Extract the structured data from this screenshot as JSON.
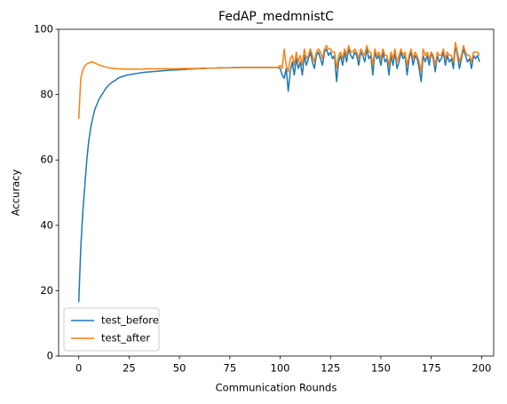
{
  "chart_data": {
    "type": "line",
    "title": "FedAP_medmnistC",
    "x_label": "Communication Rounds",
    "y_label": "Accuracy",
    "x": [
      0,
      1,
      2,
      3,
      4,
      5,
      6,
      7,
      8,
      9,
      10,
      11,
      12,
      13,
      14,
      15,
      16,
      17,
      18,
      19,
      20,
      21,
      22,
      23,
      24,
      25,
      26,
      27,
      28,
      29,
      30,
      31,
      32,
      33,
      34,
      35,
      36,
      37,
      38,
      39,
      40,
      41,
      42,
      43,
      44,
      45,
      46,
      47,
      48,
      49,
      50,
      51,
      52,
      53,
      54,
      55,
      56,
      57,
      58,
      59,
      60,
      61,
      62,
      63,
      64,
      65,
      66,
      67,
      68,
      69,
      70,
      71,
      72,
      73,
      74,
      75,
      76,
      77,
      78,
      79,
      80,
      81,
      82,
      83,
      84,
      85,
      86,
      87,
      88,
      89,
      90,
      91,
      92,
      93,
      94,
      95,
      96,
      97,
      98,
      99,
      100,
      101,
      102,
      103,
      104,
      105,
      106,
      107,
      108,
      109,
      110,
      111,
      112,
      113,
      114,
      115,
      116,
      117,
      118,
      119,
      120,
      121,
      122,
      123,
      124,
      125,
      126,
      127,
      128,
      129,
      130,
      131,
      132,
      133,
      134,
      135,
      136,
      137,
      138,
      139,
      140,
      141,
      142,
      143,
      144,
      145,
      146,
      147,
      148,
      149,
      150,
      151,
      152,
      153,
      154,
      155,
      156,
      157,
      158,
      159,
      160,
      161,
      162,
      163,
      164,
      165,
      166,
      167,
      168,
      169,
      170,
      171,
      172,
      173,
      174,
      175,
      176,
      177,
      178,
      179,
      180,
      181,
      182,
      183,
      184,
      185,
      186,
      187,
      188,
      189,
      190,
      191,
      192,
      193,
      194,
      195,
      196,
      197,
      198,
      199
    ],
    "series": [
      {
        "name": "test_before",
        "color": "#1f77b4",
        "values": [
          16.5,
          33,
          44,
          52,
          60,
          66,
          70,
          73,
          75.5,
          77,
          78.5,
          79.5,
          80.5,
          81.5,
          82.3,
          83,
          83.5,
          84,
          84.3,
          84.8,
          85.2,
          85.4,
          85.6,
          85.8,
          86,
          86.1,
          86.2,
          86.3,
          86.4,
          86.5,
          86.6,
          86.7,
          86.8,
          86.9,
          86.9,
          87,
          87,
          87.1,
          87.1,
          87.2,
          87.2,
          87.3,
          87.3,
          87.4,
          87.4,
          87.5,
          87.5,
          87.5,
          87.6,
          87.6,
          87.6,
          87.7,
          87.7,
          87.7,
          87.8,
          87.8,
          87.8,
          87.9,
          87.9,
          87.9,
          88,
          88,
          88,
          88,
          88.1,
          88.1,
          88.1,
          88.1,
          88.1,
          88.2,
          88.2,
          88.2,
          88.2,
          88.2,
          88.2,
          88.2,
          88.3,
          88.3,
          88.3,
          88.3,
          88.3,
          88.3,
          88.3,
          88.3,
          88.3,
          88.3,
          88.3,
          88.3,
          88.3,
          88.3,
          88.3,
          88.3,
          88.3,
          88.3,
          88.3,
          88.3,
          88.3,
          88.3,
          88.3,
          88.3,
          88,
          86,
          85,
          88,
          81,
          87,
          90,
          86,
          91,
          88,
          90,
          86,
          92,
          89,
          91,
          93,
          90,
          88,
          92,
          93,
          91,
          89,
          93,
          94,
          92,
          93,
          91,
          92,
          84,
          90,
          92,
          89,
          93,
          90,
          94,
          92,
          91,
          93,
          92,
          89,
          93,
          92,
          90,
          94,
          91,
          92,
          86,
          93,
          91,
          92,
          89,
          93,
          90,
          91,
          86,
          92,
          89,
          93,
          88,
          90,
          93,
          91,
          92,
          86,
          91,
          93,
          89,
          92,
          91,
          88,
          84,
          92,
          90,
          92,
          89,
          93,
          91,
          87,
          92,
          90,
          91,
          93,
          89,
          92,
          90,
          91,
          88,
          95,
          92,
          88,
          91,
          94,
          92,
          90,
          91,
          88,
          92,
          91,
          92,
          90
        ]
      },
      {
        "name": "test_after",
        "color": "#ff7f0e",
        "values": [
          72.5,
          85,
          87.5,
          88.8,
          89.4,
          89.7,
          89.9,
          90,
          89.7,
          89.4,
          89.1,
          88.9,
          88.7,
          88.5,
          88.4,
          88.2,
          88.1,
          88,
          88,
          87.9,
          87.9,
          87.9,
          87.8,
          87.8,
          87.8,
          87.8,
          87.8,
          87.8,
          87.8,
          87.8,
          87.8,
          87.8,
          87.8,
          87.9,
          87.9,
          87.9,
          87.9,
          87.9,
          87.9,
          87.9,
          87.9,
          87.9,
          87.9,
          87.9,
          87.9,
          87.9,
          87.9,
          87.9,
          87.9,
          87.9,
          87.9,
          88,
          88,
          88,
          88,
          88,
          88,
          88,
          88,
          88,
          88,
          88.1,
          88.1,
          88.1,
          88.1,
          88.1,
          88.1,
          88.1,
          88.1,
          88.1,
          88.1,
          88.2,
          88.2,
          88.2,
          88.2,
          88.2,
          88.2,
          88.2,
          88.2,
          88.2,
          88.2,
          88.3,
          88.3,
          88.3,
          88.3,
          88.3,
          88.3,
          88.3,
          88.3,
          88.3,
          88.3,
          88.3,
          88.3,
          88.3,
          88.3,
          88.3,
          88.3,
          88.3,
          88.3,
          88.3,
          89,
          88,
          94,
          89,
          87,
          91,
          92,
          89,
          93,
          90,
          92,
          89,
          94,
          91,
          92,
          94,
          92,
          90,
          93,
          94,
          93,
          91,
          94,
          95,
          94,
          94,
          93,
          93,
          88,
          92,
          93,
          91,
          94,
          92,
          95,
          93,
          93,
          94,
          93,
          91,
          94,
          93,
          92,
          95,
          93,
          93,
          89,
          94,
          92,
          93,
          91,
          94,
          92,
          92,
          89,
          93,
          91,
          94,
          90,
          92,
          94,
          92,
          93,
          89,
          92,
          94,
          91,
          93,
          92,
          90,
          87,
          94,
          92,
          93,
          91,
          93,
          92,
          89,
          93,
          92,
          92,
          94,
          91,
          93,
          92,
          92,
          90,
          96,
          93,
          90,
          92,
          95,
          93,
          92,
          92,
          90,
          93,
          93,
          93,
          92
        ]
      }
    ],
    "xlim": [
      -10,
      206
    ],
    "ylim": [
      0,
      100
    ],
    "xticks": [
      0,
      25,
      50,
      75,
      100,
      125,
      150,
      175,
      200
    ],
    "yticks": [
      0,
      20,
      40,
      60,
      80,
      100
    ],
    "grid": false,
    "legend": "lower left"
  }
}
